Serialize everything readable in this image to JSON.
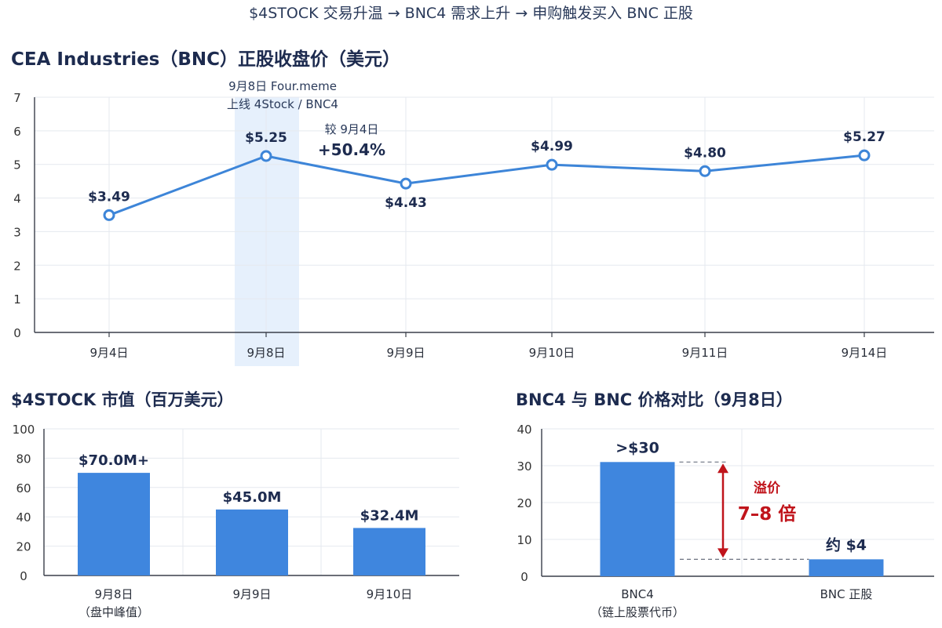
{
  "header": {
    "flow_text": "$4STOCK 交易升温 → BNC4 需求上升 → 申购触发买入 BNC 正股"
  },
  "colors": {
    "bar": "#3f86de",
    "line": "#3d85d8",
    "highlight": "#e6f0fc",
    "grid": "#e5e9ef",
    "axis": "#3a3f4a",
    "annotation_red": "#c0141b",
    "label": "#1d2b4f"
  },
  "chart_data": [
    {
      "type": "line",
      "title": "CEA Industries（BNC）正股收盘价（美元）",
      "categories": [
        "9月4日",
        "9月8日",
        "9月9日",
        "9月10日",
        "9月11日",
        "9月14日"
      ],
      "values": [
        3.49,
        5.25,
        4.43,
        4.99,
        4.8,
        5.27
      ],
      "data_labels": [
        "$3.49",
        "$5.25",
        "$4.43",
        "$4.99",
        "$4.80",
        "$5.27"
      ],
      "ylim": [
        0,
        7
      ],
      "yticks": [
        0,
        1,
        2,
        3,
        4,
        5,
        6,
        7
      ],
      "grid": true,
      "highlight_category": "9月8日",
      "annotations": {
        "highlight_line1": "9月8日 Four.meme",
        "highlight_line2": "上线 4Stock / BNC4",
        "change_line1": "较 9月4日",
        "change_line2": "+50.4%"
      }
    },
    {
      "type": "bar",
      "title": "$4STOCK 市值（百万美元）",
      "categories": [
        "9月8日",
        "9月9日",
        "9月10日"
      ],
      "category_sublabels": [
        "（盘中峰值）",
        "",
        ""
      ],
      "values": [
        70.0,
        45.0,
        32.4
      ],
      "data_labels": [
        "$70.0M+",
        "$45.0M",
        "$32.4M"
      ],
      "ylim": [
        0,
        100
      ],
      "yticks": [
        0,
        20,
        40,
        60,
        80,
        100
      ],
      "grid": true
    },
    {
      "type": "bar",
      "title": "BNC4 与 BNC 价格对比（9月8日）",
      "categories": [
        "BNC4",
        "BNC 正股"
      ],
      "category_sublabels": [
        "（链上股票代币）",
        ""
      ],
      "values": [
        31,
        4.6
      ],
      "data_labels": [
        ">$30",
        "约 $4"
      ],
      "ylim": [
        0,
        40
      ],
      "yticks": [
        0,
        10,
        20,
        30,
        40
      ],
      "grid": true,
      "annotations": {
        "premium_label": "溢价",
        "premium_value": "7–8 倍"
      }
    }
  ]
}
